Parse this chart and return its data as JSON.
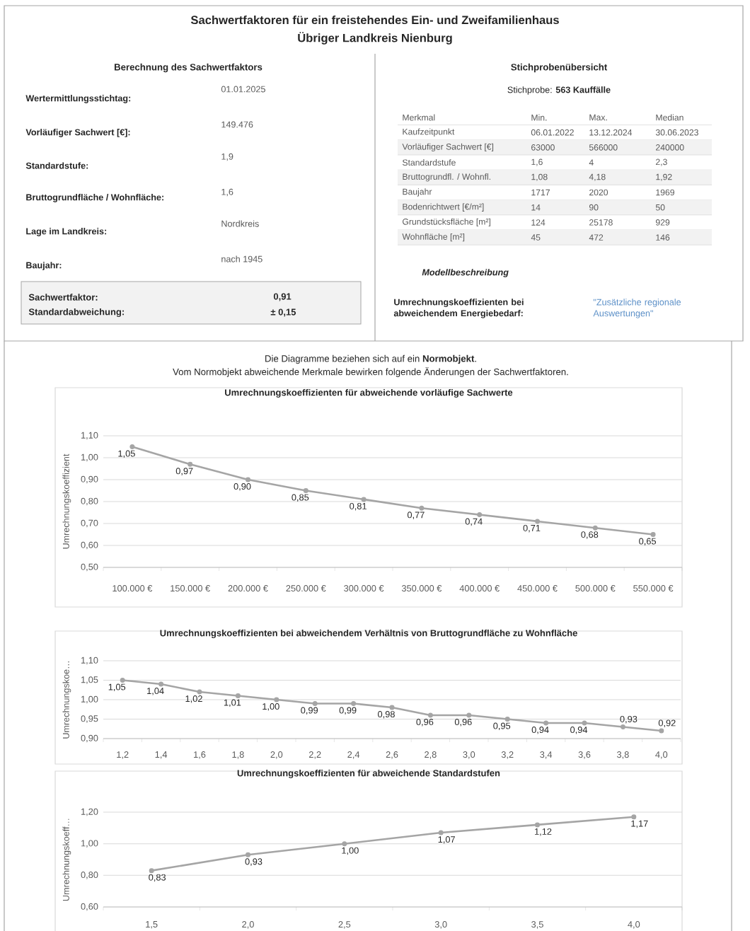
{
  "chart_data": [
    {
      "type": "other",
      "title": "Sachwertfaktoren für ein freistehendes Ein- und Zweifamilienhaus",
      "subtitle": "Übriger Landkreis Nienburg",
      "annotations": [
        "Berechnung des Sachwertfaktors",
        "Wertermittlungsstichtag:",
        "01.01.2025",
        "Vorläufiger Sachwert [€]:",
        "149.476",
        "Standardstufe:",
        "1,9",
        "Bruttogrundfläche / Wohnfläche:",
        "1,6",
        "Lage im Landkreis:",
        "Nordkreis",
        "Baujahr:",
        "nach 1945",
        "Sachwertfaktor:",
        "0,91",
        "Standardabweichung:",
        "± 0,15",
        "Stichprobenübersicht",
        "Stichprobe: **563 Kauffälle**",
        "Merkmal",
        "Min.",
        "Max.",
        "Median",
        "Kaufzeitpunkt",
        "06.01.2022",
        "13.12.2024",
        "30.06.2023",
        "Vorläufiger Sachwert [€]",
        "63000",
        "566000",
        "240000",
        "Standardstufe",
        "1,6",
        "4",
        "2,3",
        "Bruttogrundfl. / Wohnfl.",
        "1,08",
        "4,18",
        "1,92",
        "Baujahr",
        "1717",
        "2020",
        "1969",
        "Bodenrichtwert [€/m²]",
        "14",
        "90",
        "50",
        "Grundstücksfläche [m²]",
        "124",
        "25178",
        "929",
        "Wohnfläche [m²]",
        "45",
        "472",
        "146",
        "Modellbeschreibung",
        "Umrechnungskoeffizienten bei abweichendem Energiebedarf:",
        "\"Zusätzliche regionale Auswertungen\"",
        "Die Diagramme beziehen sich auf ein **Normobjekt**.",
        "Vom Normobjekt abweichende Merkmale bewirken folgende Änderungen der Sachwertfaktoren."
      ]
    },
    {
      "type": "line",
      "title": "Umrechnungskoeffizienten für abweichende vorläufige Sachwerte",
      "ylabel": "Umrechnungskoeffizient",
      "categories": [
        "100.000 €",
        "150.000 €",
        "200.000 €",
        "250.000 €",
        "300.000 €",
        "350.000 €",
        "400.000 €",
        "450.000 €",
        "500.000 €",
        "550.000 €"
      ],
      "values": [
        1.05,
        0.97,
        0.9,
        0.85,
        0.81,
        0.77,
        0.74,
        0.71,
        0.68,
        0.65
      ],
      "value_labels": [
        "1,05",
        "0,97",
        "0,90",
        "0,85",
        "0,81",
        "0,77",
        "0,74",
        "0,71",
        "0,68",
        "0,65"
      ],
      "color": "#a5a5a5",
      "ylim": [
        0.5,
        1.1
      ],
      "yticks": [
        {
          "value": 0.5,
          "label": "0,50"
        },
        {
          "value": 0.6,
          "label": "0,60"
        },
        {
          "value": 0.7,
          "label": "0,70"
        },
        {
          "value": 0.8,
          "label": "0,80"
        },
        {
          "value": 0.9,
          "label": "0,90"
        },
        {
          "value": 1.0,
          "label": "1,00"
        },
        {
          "value": 1.1,
          "label": "1,10"
        }
      ],
      "grid": "y",
      "marker": "circle"
    },
    {
      "type": "line",
      "title": "Umrechnungskoeffizienten bei abweichendem Verhältnis von Bruttogrundfläche zu Wohnfläche",
      "ylabel": "Umrechnungskoe…",
      "categories": [
        "1,2",
        "1,4",
        "1,6",
        "1,8",
        "2,0",
        "2,2",
        "2,4",
        "2,6",
        "2,8",
        "3,0",
        "3,2",
        "3,4",
        "3,6",
        "3,8",
        "4,0"
      ],
      "values": [
        1.05,
        1.04,
        1.02,
        1.01,
        1.0,
        0.99,
        0.99,
        0.98,
        0.96,
        0.96,
        0.95,
        0.94,
        0.94,
        0.93,
        0.92
      ],
      "value_labels": [
        "1,05",
        "1,04",
        "1,02",
        "1,01",
        "1,00",
        "0,99",
        "0,99",
        "0,98",
        "0,96",
        "0,96",
        "0,95",
        "0,94",
        "0,94",
        "0,93",
        "0,92"
      ],
      "color": "#a5a5a5",
      "ylim": [
        0.9,
        1.1
      ],
      "yticks": [
        {
          "value": 0.9,
          "label": "0,90"
        },
        {
          "value": 0.95,
          "label": "0,95"
        },
        {
          "value": 1.0,
          "label": "1,00"
        },
        {
          "value": 1.05,
          "label": "1,05"
        },
        {
          "value": 1.1,
          "label": "1,10"
        }
      ],
      "grid": "y",
      "marker": "circle"
    },
    {
      "type": "line",
      "title": "Umrechnungskoeffizienten für abweichende Standardstufen",
      "ylabel": "Umrechnungskoeff…",
      "categories": [
        "1,5",
        "2,0",
        "2,5",
        "3,0",
        "3,5",
        "4,0"
      ],
      "values": [
        0.83,
        0.93,
        1.0,
        1.07,
        1.12,
        1.17
      ],
      "value_labels": [
        "0,83",
        "0,93",
        "1,00",
        "1,07",
        "1,12",
        "1,17"
      ],
      "color": "#a5a5a5",
      "ylim": [
        0.6,
        1.2
      ],
      "yticks": [
        {
          "value": 0.6,
          "label": "0,60"
        },
        {
          "value": 0.8,
          "label": "0,80"
        },
        {
          "value": 1.0,
          "label": "1,00"
        },
        {
          "value": 1.2,
          "label": "1,20"
        }
      ],
      "grid": "y",
      "marker": "circle"
    }
  ]
}
